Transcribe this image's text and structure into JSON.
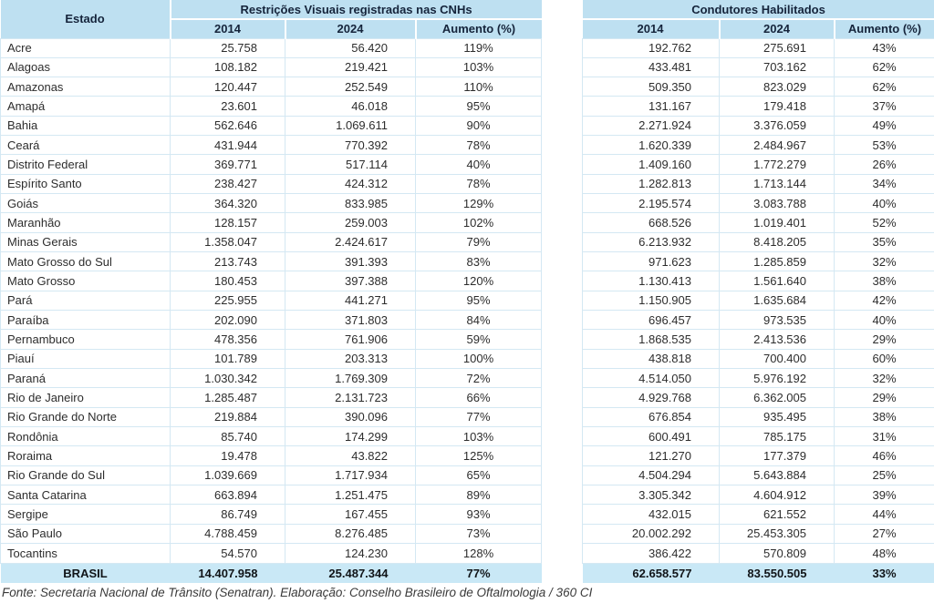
{
  "chart_data": {
    "type": "table",
    "state_column_header": "Estado",
    "title_left": "Restrições Visuais registradas nas CNHs",
    "title_right": "Condutores Habilitados",
    "sub_columns": [
      "2014",
      "2024",
      "Aumento (%)"
    ],
    "rows": [
      {
        "estado": "Acre",
        "cnh": [
          "25.758",
          "56.420",
          "119%"
        ],
        "cond": [
          "192.762",
          "275.691",
          "43%"
        ]
      },
      {
        "estado": "Alagoas",
        "cnh": [
          "108.182",
          "219.421",
          "103%"
        ],
        "cond": [
          "433.481",
          "703.162",
          "62%"
        ]
      },
      {
        "estado": "Amazonas",
        "cnh": [
          "120.447",
          "252.549",
          "110%"
        ],
        "cond": [
          "509.350",
          "823.029",
          "62%"
        ]
      },
      {
        "estado": "Amapá",
        "cnh": [
          "23.601",
          "46.018",
          "95%"
        ],
        "cond": [
          "131.167",
          "179.418",
          "37%"
        ]
      },
      {
        "estado": "Bahia",
        "cnh": [
          "562.646",
          "1.069.611",
          "90%"
        ],
        "cond": [
          "2.271.924",
          "3.376.059",
          "49%"
        ]
      },
      {
        "estado": "Ceará",
        "cnh": [
          "431.944",
          "770.392",
          "78%"
        ],
        "cond": [
          "1.620.339",
          "2.484.967",
          "53%"
        ]
      },
      {
        "estado": "Distrito Federal",
        "cnh": [
          "369.771",
          "517.114",
          "40%"
        ],
        "cond": [
          "1.409.160",
          "1.772.279",
          "26%"
        ]
      },
      {
        "estado": "Espírito Santo",
        "cnh": [
          "238.427",
          "424.312",
          "78%"
        ],
        "cond": [
          "1.282.813",
          "1.713.144",
          "34%"
        ]
      },
      {
        "estado": "Goiás",
        "cnh": [
          "364.320",
          "833.985",
          "129%"
        ],
        "cond": [
          "2.195.574",
          "3.083.788",
          "40%"
        ]
      },
      {
        "estado": "Maranhão",
        "cnh": [
          "128.157",
          "259.003",
          "102%"
        ],
        "cond": [
          "668.526",
          "1.019.401",
          "52%"
        ]
      },
      {
        "estado": "Minas Gerais",
        "cnh": [
          "1.358.047",
          "2.424.617",
          "79%"
        ],
        "cond": [
          "6.213.932",
          "8.418.205",
          "35%"
        ]
      },
      {
        "estado": "Mato Grosso do Sul",
        "cnh": [
          "213.743",
          "391.393",
          "83%"
        ],
        "cond": [
          "971.623",
          "1.285.859",
          "32%"
        ]
      },
      {
        "estado": "Mato Grosso",
        "cnh": [
          "180.453",
          "397.388",
          "120%"
        ],
        "cond": [
          "1.130.413",
          "1.561.640",
          "38%"
        ]
      },
      {
        "estado": "Pará",
        "cnh": [
          "225.955",
          "441.271",
          "95%"
        ],
        "cond": [
          "1.150.905",
          "1.635.684",
          "42%"
        ]
      },
      {
        "estado": "Paraíba",
        "cnh": [
          "202.090",
          "371.803",
          "84%"
        ],
        "cond": [
          "696.457",
          "973.535",
          "40%"
        ]
      },
      {
        "estado": "Pernambuco",
        "cnh": [
          "478.356",
          "761.906",
          "59%"
        ],
        "cond": [
          "1.868.535",
          "2.413.536",
          "29%"
        ]
      },
      {
        "estado": "Piauí",
        "cnh": [
          "101.789",
          "203.313",
          "100%"
        ],
        "cond": [
          "438.818",
          "700.400",
          "60%"
        ]
      },
      {
        "estado": "Paraná",
        "cnh": [
          "1.030.342",
          "1.769.309",
          "72%"
        ],
        "cond": [
          "4.514.050",
          "5.976.192",
          "32%"
        ]
      },
      {
        "estado": "Rio de Janeiro",
        "cnh": [
          "1.285.487",
          "2.131.723",
          "66%"
        ],
        "cond": [
          "4.929.768",
          "6.362.005",
          "29%"
        ]
      },
      {
        "estado": "Rio Grande do Norte",
        "cnh": [
          "219.884",
          "390.096",
          "77%"
        ],
        "cond": [
          "676.854",
          "935.495",
          "38%"
        ]
      },
      {
        "estado": "Rondônia",
        "cnh": [
          "85.740",
          "174.299",
          "103%"
        ],
        "cond": [
          "600.491",
          "785.175",
          "31%"
        ]
      },
      {
        "estado": "Roraima",
        "cnh": [
          "19.478",
          "43.822",
          "125%"
        ],
        "cond": [
          "121.270",
          "177.379",
          "46%"
        ]
      },
      {
        "estado": "Rio Grande do Sul",
        "cnh": [
          "1.039.669",
          "1.717.934",
          "65%"
        ],
        "cond": [
          "4.504.294",
          "5.643.884",
          "25%"
        ]
      },
      {
        "estado": "Santa Catarina",
        "cnh": [
          "663.894",
          "1.251.475",
          "89%"
        ],
        "cond": [
          "3.305.342",
          "4.604.912",
          "39%"
        ]
      },
      {
        "estado": "Sergipe",
        "cnh": [
          "86.749",
          "167.455",
          "93%"
        ],
        "cond": [
          "432.015",
          "621.552",
          "44%"
        ]
      },
      {
        "estado": "São Paulo",
        "cnh": [
          "4.788.459",
          "8.276.485",
          "73%"
        ],
        "cond": [
          "20.002.292",
          "25.453.305",
          "27%"
        ]
      },
      {
        "estado": "Tocantins",
        "cnh": [
          "54.570",
          "124.230",
          "128%"
        ],
        "cond": [
          "386.422",
          "570.809",
          "48%"
        ]
      }
    ],
    "totals": {
      "label": "BRASIL",
      "cnh": [
        "14.407.958",
        "25.487.344",
        "77%"
      ],
      "cond": [
        "62.658.577",
        "83.550.505",
        "33%"
      ]
    }
  },
  "footer": {
    "source_note": "Fonte: Secretaria Nacional de Trânsito (Senatran). Elaboração: Conselho Brasileiro de Oftalmologia / 360 CI"
  },
  "colors": {
    "header_bg": "#bee0f1",
    "total_bg": "#c9e8f6",
    "border": "#d4e8f3",
    "header_text": "#15243b"
  }
}
